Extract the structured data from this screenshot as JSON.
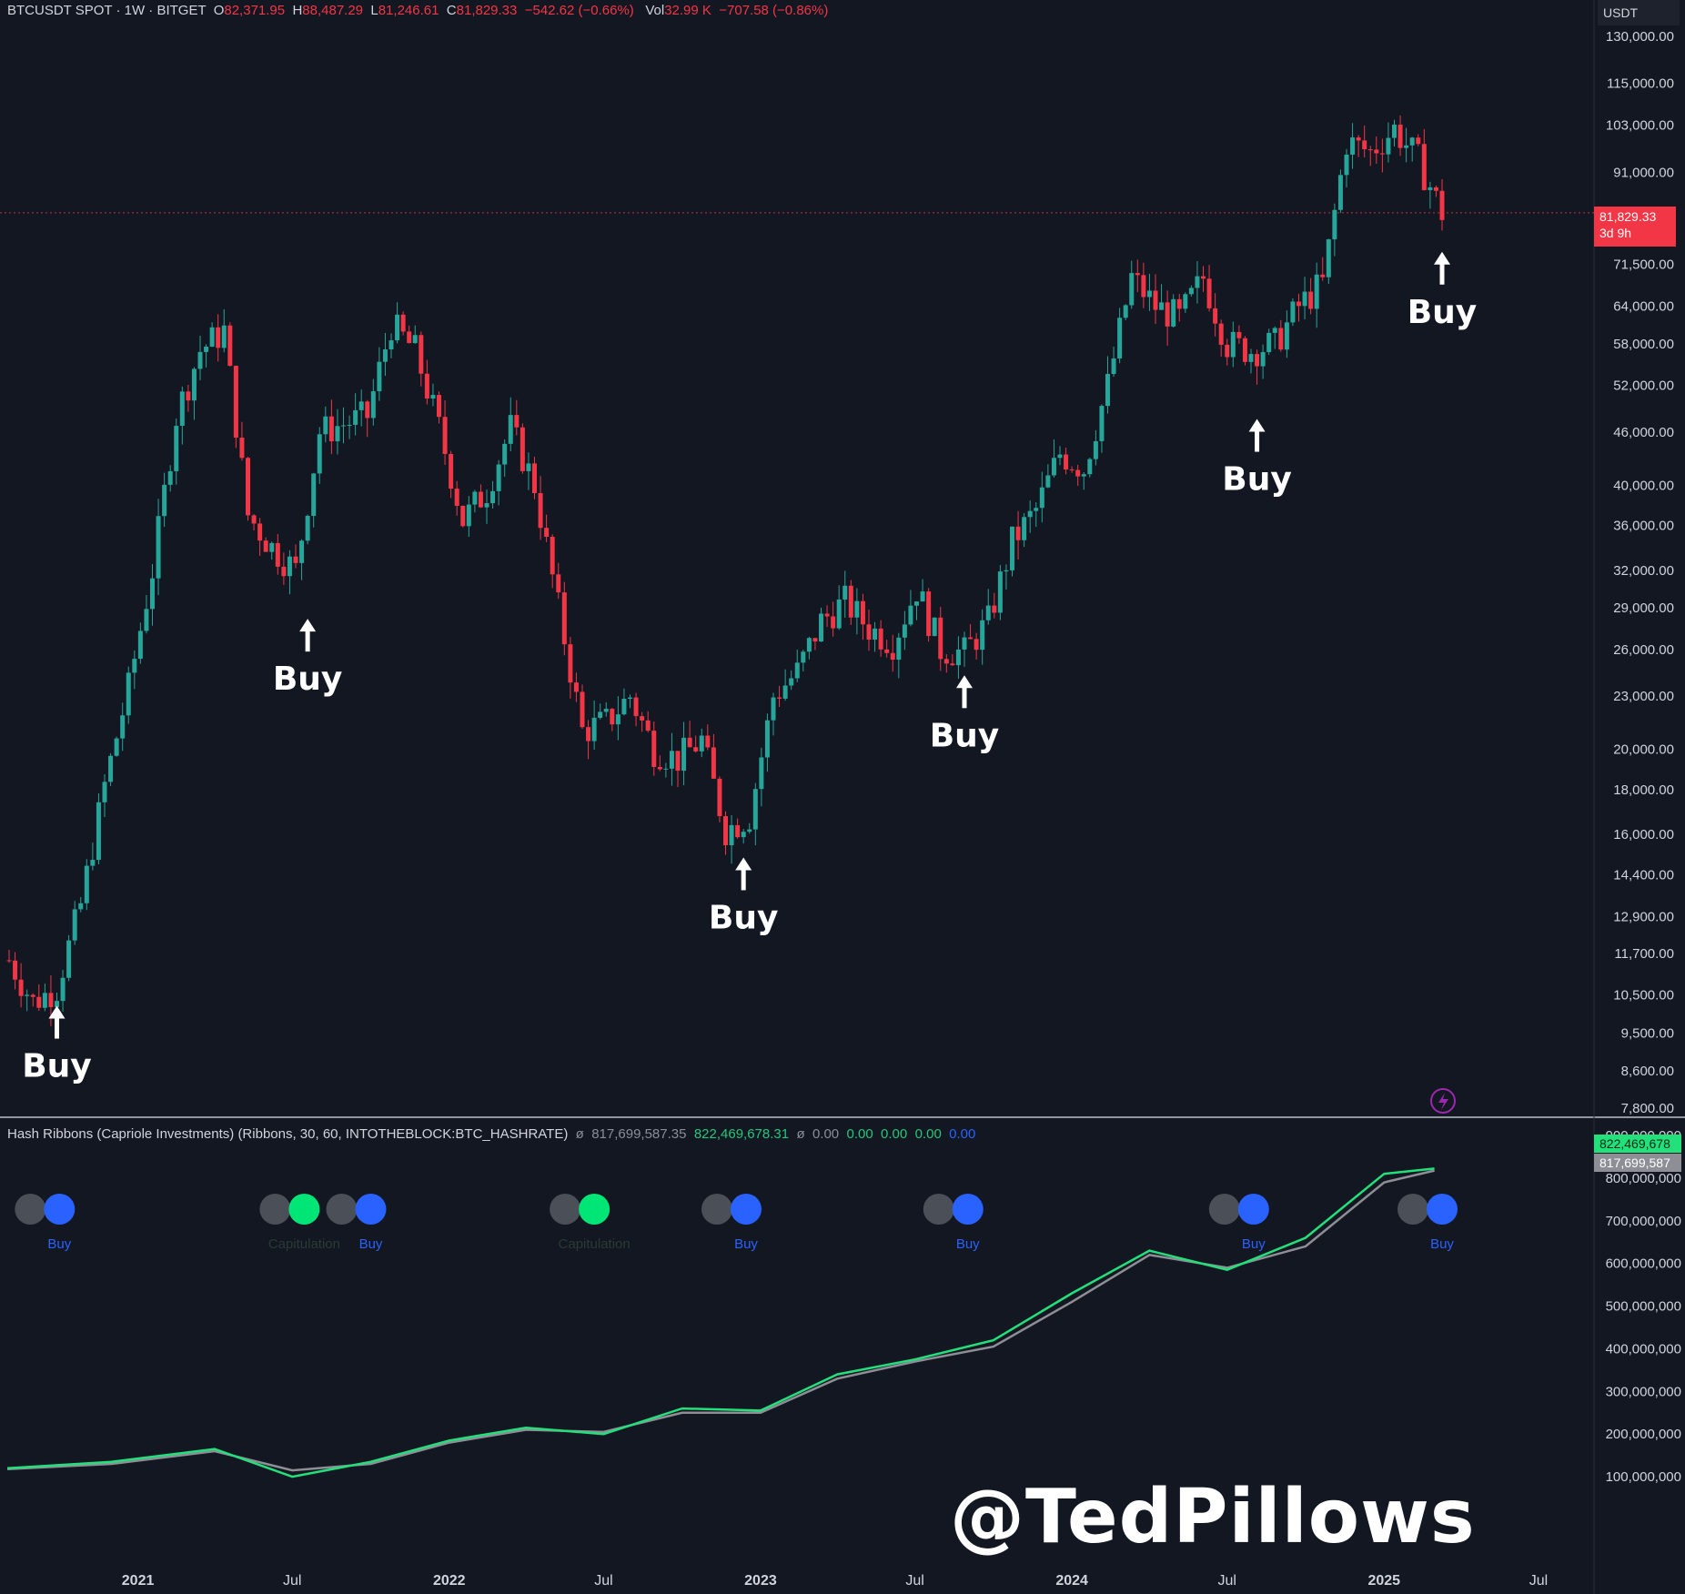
{
  "header": {
    "symbol": "BTCUSDT SPOT · 1W · BITGET",
    "o_label": "O",
    "o": "82,371.95",
    "h_label": "H",
    "h": "88,487.29",
    "l_label": "L",
    "l": "81,246.61",
    "c_label": "C",
    "c": "81,829.33",
    "change": "−542.62 (−0.66%)",
    "vol_label": "Vol",
    "vol": "32.99 K",
    "vol_change": "−707.58 (−0.86%)",
    "currency": "USDT"
  },
  "indicator_header": {
    "name": "Hash Ribbons (Capriole Investments) (Ribbons, 30, 60, INTOTHEBLOCK:BTC_HASHRATE)",
    "sym1": "ø",
    "v1": "817,699,587.35",
    "v2": "822,469,678.31",
    "sym2": "ø",
    "z1": "0.00",
    "z2": "0.00",
    "z3": "0.00",
    "z4": "0.00",
    "z5": "0.00"
  },
  "price_badge": {
    "value": "81,829.33",
    "countdown": "3d 9h"
  },
  "hash_badges": {
    "fast": "822,469,678",
    "slow": "817,699,587"
  },
  "watermark": "@TedPillows",
  "colors": {
    "background": "#131722",
    "up": "#26a69a",
    "down": "#f23645",
    "fast_ma_up": "#22e07a",
    "fast_ma_down": "#f05a5a",
    "slow_ma": "#8e8e96",
    "dot_buy": "#2962ff",
    "dot_capitulation": "#00e676",
    "dot_inactive": "#4a4f58",
    "text": "#d1d4dc"
  },
  "chart_data": [
    {
      "type": "candlestick",
      "title": "BTCUSDT SPOT · 1W · BITGET",
      "y_scale": "log",
      "ylim": [
        7800,
        130000
      ],
      "x_tick_labels": [
        "2021",
        "Jul",
        "2022",
        "Jul",
        "2023",
        "Jul",
        "2024",
        "Jul",
        "2025",
        "Jul"
      ],
      "y_tick_labels": [
        "130,000.00",
        "115,000.00",
        "103,000.00",
        "91,000.00",
        "71,500.00",
        "64,000.00",
        "58,000.00",
        "52,000.00",
        "46,000.00",
        "40,000.00",
        "36,000.00",
        "32,000.00",
        "29,000.00",
        "26,000.00",
        "23,000.00",
        "20,000.00",
        "18,000.00",
        "16,000.00",
        "14,400.00",
        "12,900.00",
        "11,700.00",
        "10,500.00",
        "9,500.00",
        "8,600.00",
        "7,800.00"
      ],
      "x": [
        "2020-08-03",
        "2020-08-31",
        "2020-09-28",
        "2020-10-26",
        "2020-11-23",
        "2020-12-21",
        "2021-01-18",
        "2021-02-15",
        "2021-03-15",
        "2021-04-12",
        "2021-05-10",
        "2021-06-07",
        "2021-07-05",
        "2021-08-02",
        "2021-08-30",
        "2021-09-27",
        "2021-10-25",
        "2021-11-22",
        "2021-12-20",
        "2022-01-17",
        "2022-02-14",
        "2022-03-14",
        "2022-04-11",
        "2022-05-09",
        "2022-06-06",
        "2022-07-04",
        "2022-08-01",
        "2022-08-29",
        "2022-09-26",
        "2022-10-24",
        "2022-11-21",
        "2022-12-19",
        "2023-01-16",
        "2023-02-13",
        "2023-03-13",
        "2023-04-10",
        "2023-05-08",
        "2023-06-05",
        "2023-07-03",
        "2023-07-31",
        "2023-08-28",
        "2023-09-25",
        "2023-10-23",
        "2023-11-20",
        "2023-12-18",
        "2024-01-15",
        "2024-02-12",
        "2024-03-11",
        "2024-04-08",
        "2024-05-06",
        "2024-06-03",
        "2024-07-01",
        "2024-07-29",
        "2024-08-26",
        "2024-09-23",
        "2024-10-21",
        "2024-11-18",
        "2024-12-16",
        "2025-01-13",
        "2025-02-10",
        "2025-03-10"
      ],
      "close": [
        11500,
        10300,
        10700,
        13300,
        18200,
        23500,
        32000,
        48000,
        57000,
        60000,
        37000,
        34000,
        32000,
        46000,
        47000,
        48000,
        61000,
        57000,
        46500,
        36500,
        39500,
        46500,
        40000,
        29000,
        21000,
        21500,
        23000,
        20000,
        19500,
        20500,
        16200,
        16800,
        23000,
        24500,
        28000,
        29500,
        27500,
        26500,
        30500,
        26000,
        25800,
        28000,
        34500,
        37500,
        43500,
        41800,
        52000,
        69000,
        64000,
        62000,
        69000,
        58000,
        57000,
        58000,
        64000,
        68000,
        98500,
        96000,
        102000,
        94000,
        81829.33
      ],
      "hash_ribbons": {
        "units": "hashrate (MA)",
        "x": [
          "2020-08",
          "2020-12",
          "2021-04",
          "2021-07",
          "2021-10",
          "2022-01",
          "2022-04",
          "2022-07",
          "2022-10",
          "2023-01",
          "2023-04",
          "2023-07",
          "2023-10",
          "2024-01",
          "2024-04",
          "2024-07",
          "2024-10",
          "2025-01",
          "2025-03"
        ],
        "fast_ma": [
          120000000,
          135000000,
          165000000,
          100000000,
          135000000,
          185000000,
          215000000,
          200000000,
          260000000,
          255000000,
          340000000,
          375000000,
          420000000,
          530000000,
          630000000,
          585000000,
          660000000,
          810000000,
          822469678.31
        ],
        "slow_ma": [
          118000000,
          130000000,
          160000000,
          115000000,
          130000000,
          180000000,
          210000000,
          205000000,
          250000000,
          250000000,
          330000000,
          370000000,
          405000000,
          510000000,
          620000000,
          590000000,
          640000000,
          790000000,
          817699587.35
        ],
        "ylim": [
          0,
          900000000
        ],
        "y_tick_labels": [
          "900,000,000",
          "800,000,000",
          "700,000,000",
          "600,000,000",
          "500,000,000",
          "400,000,000",
          "300,000,000",
          "200,000,000",
          "100,000,000"
        ],
        "signal_label_capitulation": "Capitulation",
        "signal_label_buy": "Buy"
      },
      "annotations": [
        {
          "text": "Buy",
          "date": "2020-09-28",
          "price": 10500
        },
        {
          "text": "Buy",
          "date": "2021-07-19",
          "price": 29000
        },
        {
          "text": "Buy",
          "date": "2022-12-12",
          "price": 15500
        },
        {
          "text": "Buy",
          "date": "2023-08-28",
          "price": 25000
        },
        {
          "text": "Buy",
          "date": "2024-08-05",
          "price": 49000
        },
        {
          "text": "Buy",
          "date": "2025-03-10",
          "price": 76000
        }
      ]
    }
  ]
}
